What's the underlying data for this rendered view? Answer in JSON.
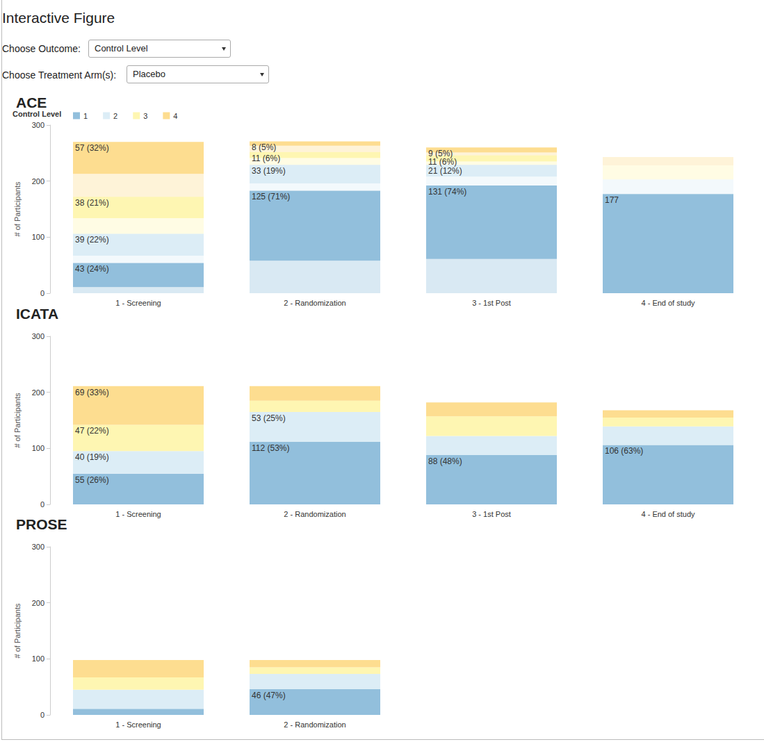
{
  "header": {
    "title": "Interactive Figure",
    "controls": [
      {
        "label": "Choose Outcome:",
        "value": "Control Level"
      },
      {
        "label": "Choose Treatment Arm(s):",
        "value": "Placebo"
      }
    ]
  },
  "chart_data": [
    {
      "type": "bar",
      "title": "ACE",
      "stacked": true,
      "data_labels": true,
      "grid": false,
      "legend": "top-left",
      "legend_title": "Control Level",
      "y_label": "# of Participants",
      "ylim": [
        0,
        300
      ],
      "yticks": [
        0,
        100,
        200,
        300
      ],
      "categories": [
        "1 - Screening",
        "2 - Randomization",
        "3 - 1st Post",
        "4 - End of study"
      ],
      "series": [
        {
          "name": "1",
          "color": "#92bfdc",
          "values": [
            43,
            125,
            131,
            177
          ],
          "value_labels": [
            "43 (24%)",
            "125 (71%)",
            "131 (74%)",
            "177"
          ],
          "other_arms": [
            11,
            58,
            61,
            null
          ]
        },
        {
          "name": "2",
          "color": "#dcedf6",
          "values": [
            39,
            33,
            21,
            null
          ],
          "value_labels": [
            "39 (22%)",
            "33 (19%)",
            "21 (12%)",
            null
          ],
          "other_arms": [
            13,
            13,
            16,
            26
          ]
        },
        {
          "name": "3",
          "color": "#fef6b2",
          "values": [
            38,
            11,
            11,
            null
          ],
          "value_labels": [
            "38 (21%)",
            "11 (6%)",
            "11 (6%)",
            null
          ],
          "other_arms": [
            28,
            12,
            6,
            25
          ]
        },
        {
          "name": "4",
          "color": "#fddd90",
          "values": [
            57,
            8,
            9,
            null
          ],
          "value_labels": [
            "57 (32%)",
            "8 (5%)",
            "9 (5%)",
            null
          ],
          "other_arms": [
            41,
            11,
            5,
            15
          ]
        }
      ]
    },
    {
      "type": "bar",
      "title": "ICATA",
      "stacked": true,
      "data_labels": true,
      "grid": false,
      "y_label": "# of Participants",
      "ylim": [
        0,
        300
      ],
      "yticks": [
        0,
        100,
        200,
        300
      ],
      "categories": [
        "1 - Screening",
        "2 - Randomization",
        "3 - 1st Post",
        "4 - End of study"
      ],
      "series": [
        {
          "name": "1",
          "color": "#92bfdc",
          "values": [
            55,
            112,
            88,
            106
          ],
          "value_labels": [
            "55 (26%)",
            "112 (53%)",
            "88 (48%)",
            "106 (63%)"
          ]
        },
        {
          "name": "2",
          "color": "#dcedf6",
          "values": [
            40,
            53,
            34,
            33
          ],
          "value_labels": [
            "40 (19%)",
            "53 (25%)",
            null,
            null
          ]
        },
        {
          "name": "3",
          "color": "#fef6b2",
          "values": [
            47,
            20,
            35,
            16
          ],
          "value_labels": [
            "47 (22%)",
            null,
            null,
            null
          ]
        },
        {
          "name": "4",
          "color": "#fddd90",
          "values": [
            69,
            26,
            25,
            13
          ],
          "value_labels": [
            "69 (33%)",
            null,
            null,
            null
          ]
        }
      ]
    },
    {
      "type": "bar",
      "title": "PROSE",
      "stacked": true,
      "data_labels": true,
      "grid": false,
      "y_label": "# of Participants",
      "ylim": [
        0,
        300
      ],
      "yticks": [
        0,
        100,
        200,
        300
      ],
      "categories": [
        "1 - Screening",
        "2 - Randomization",
        null,
        null
      ],
      "series": [
        {
          "name": "1",
          "color": "#92bfdc",
          "values": [
            11,
            46,
            null,
            null
          ],
          "value_labels": [
            null,
            "46 (47%)",
            null,
            null
          ]
        },
        {
          "name": "2",
          "color": "#dcedf6",
          "values": [
            34,
            27,
            null,
            null
          ],
          "value_labels": [
            null,
            null,
            null,
            null
          ]
        },
        {
          "name": "3",
          "color": "#fef6b2",
          "values": [
            22,
            12,
            null,
            null
          ],
          "value_labels": [
            null,
            null,
            null,
            null
          ]
        },
        {
          "name": "4",
          "color": "#fddd90",
          "values": [
            31,
            13,
            null,
            null
          ],
          "value_labels": [
            null,
            null,
            null,
            null
          ]
        }
      ]
    }
  ]
}
